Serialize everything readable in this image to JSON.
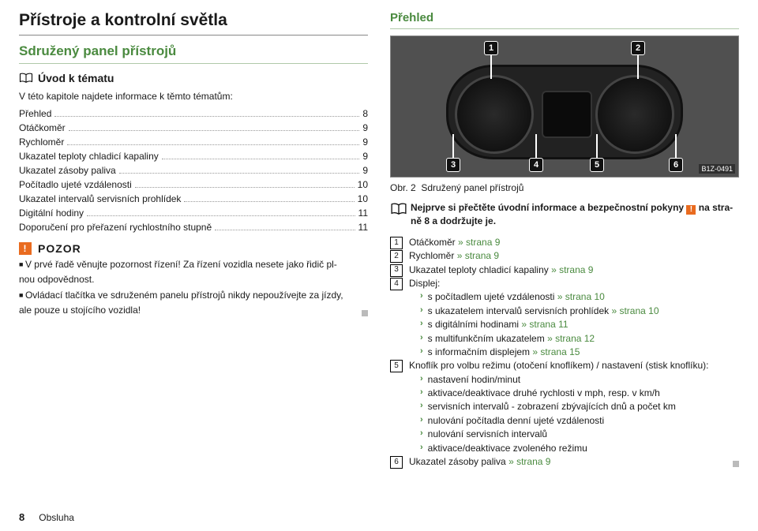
{
  "colors": {
    "green": "#4a8a3f",
    "orange": "#e96b1f",
    "text": "#1a1a1a",
    "dot": "#999999"
  },
  "left": {
    "h1": "Přístroje a kontrolní světla",
    "h2": "Sdružený panel přístrojů",
    "intro_label": "Úvod k tématu",
    "lead": "V této kapitole najdete informace k těmto tématům:",
    "toc": [
      {
        "label": "Přehled",
        "page": "8"
      },
      {
        "label": "Otáčkoměr",
        "page": "9"
      },
      {
        "label": "Rychloměr",
        "page": "9"
      },
      {
        "label": "Ukazatel teploty chladicí kapaliny",
        "page": "9"
      },
      {
        "label": "Ukazatel zásoby paliva",
        "page": "9"
      },
      {
        "label": "Počítadlo ujeté vzdálenosti",
        "page": "10"
      },
      {
        "label": "Ukazatel intervalů servisních prohlídek",
        "page": "10"
      },
      {
        "label": "Digitální hodiny",
        "page": "11"
      },
      {
        "label": "Doporučení pro přeřazení rychlostního stupně",
        "page": "11"
      }
    ],
    "warn_title": "POZOR",
    "warn_p1_a": "V prvé řadě věnujte pozornost řízení! Za řízení vozidla nesete jako řidič pl-",
    "warn_p1_b": "nou odpovědnost.",
    "warn_p2_a": "Ovládací tlačítka ve sdruženém panelu přístrojů nikdy nepoužívejte za jízdy,",
    "warn_p2_b": "ale pouze u stojícího vozidla!"
  },
  "right": {
    "h3": "Přehled",
    "fig_code": "B1Z-0491",
    "fig_tags": [
      "1",
      "2",
      "3",
      "4",
      "5",
      "6"
    ],
    "caption_prefix": "Obr. 2",
    "caption_text": "Sdružený panel přístrojů",
    "info_a": "Nejprve si přečtěte úvodní informace a bezpečnostní pokyny ",
    "info_b": " na stra-",
    "info_c": "ně 8 a dodržujte je.",
    "legend": [
      {
        "n": "1",
        "text": "Otáčkoměr ",
        "ref": "» strana 9"
      },
      {
        "n": "2",
        "text": "Rychloměr ",
        "ref": "» strana 9"
      },
      {
        "n": "3",
        "text": "Ukazatel teploty chladicí kapaliny ",
        "ref": "» strana 9"
      },
      {
        "n": "4",
        "text": "Displej:",
        "sub": [
          {
            "t": "s počítadlem ujeté vzdálenosti ",
            "ref": "» strana 10"
          },
          {
            "t": "s ukazatelem intervalů servisních prohlídek ",
            "ref": "» strana 10"
          },
          {
            "t": "s digitálními hodinami ",
            "ref": "» strana 11"
          },
          {
            "t": "s multifunkčním ukazatelem ",
            "ref": "» strana 12"
          },
          {
            "t": "s informačním displejem ",
            "ref": "» strana 15"
          }
        ]
      },
      {
        "n": "5",
        "text": "Knoflík pro volbu režimu (otočení knoflíkem) / nastavení (stisk knoflíku):",
        "sub": [
          {
            "t": "nastavení hodin/minut"
          },
          {
            "t": "aktivace/deaktivace druhé rychlosti v mph, resp. v km/h"
          },
          {
            "t": "servisních intervalů - zobrazení zbývajících dnů a počet km"
          },
          {
            "t": "nulování počítadla denní ujeté vzdálenosti"
          },
          {
            "t": "nulování servisních intervalů"
          },
          {
            "t": "aktivace/deaktivace zvoleného režimu"
          }
        ]
      },
      {
        "n": "6",
        "text": "Ukazatel zásoby paliva ",
        "ref": "» strana 9"
      }
    ]
  },
  "footer": {
    "page": "8",
    "section": "Obsluha"
  }
}
